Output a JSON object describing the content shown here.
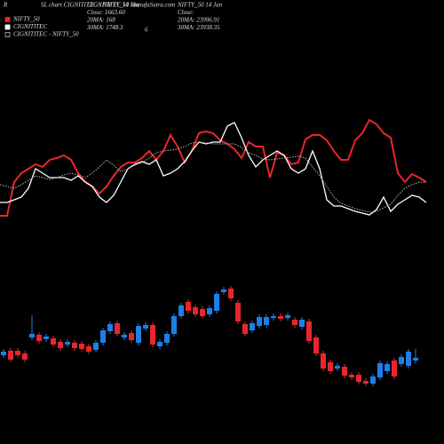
{
  "header": {
    "corner": "R",
    "title": "SL chart CIGNITITEC : NIFTY_50 MunafaSutra.com"
  },
  "info_left": [
    "CIGNITITEC 14 Jan",
    "Close: 1663.60",
    "20MA: 168",
    "30MA: 1748.3"
  ],
  "info_left_extra": "6",
  "info_right": [
    "NIFTY_50 14 Jan",
    "Close:",
    "20MA: 23996.91",
    "30MA: 23938.35"
  ],
  "chart_data": [
    {
      "type": "line",
      "ylim": [
        0,
        500
      ],
      "series": [
        {
          "name": "NIFTY_50",
          "color": "#e8262d",
          "values": [
            257,
            257,
            295,
            305,
            310,
            315,
            312,
            320,
            322,
            325,
            320,
            305,
            295,
            290,
            282,
            290,
            302,
            312,
            317,
            317,
            322,
            330,
            320,
            330,
            348,
            335,
            317,
            330,
            350,
            352,
            350,
            342,
            338,
            332,
            322,
            340,
            335,
            335,
            300,
            328,
            325,
            315,
            317,
            343,
            348,
            348,
            342,
            330,
            320,
            320,
            342,
            350,
            365,
            360,
            350,
            345,
            305,
            295,
            304,
            300,
            295
          ]
        },
        {
          "name": "CIGNITITEC",
          "color": "#ffffff",
          "values": [
            272,
            272,
            275,
            278,
            288,
            310,
            305,
            300,
            300,
            300,
            297,
            302,
            295,
            290,
            278,
            272,
            280,
            295,
            310,
            315,
            318,
            315,
            320,
            302,
            305,
            310,
            318,
            330,
            340,
            338,
            340,
            340,
            358,
            362,
            345,
            325,
            312,
            320,
            325,
            330,
            325,
            310,
            305,
            310,
            330,
            310,
            275,
            268,
            268,
            265,
            262,
            260,
            258,
            264,
            278,
            262,
            270,
            275,
            280,
            278,
            272
          ]
        },
        {
          "name": "CIGNITITEC - NIFTY_50",
          "color": "#bbbbbb",
          "dashed": true,
          "values": [
            292,
            290,
            288,
            292,
            297,
            302,
            300,
            298,
            300,
            303,
            305,
            303,
            300,
            305,
            312,
            320,
            314,
            307,
            310,
            314,
            317,
            322,
            328,
            330,
            331,
            332,
            335,
            339,
            340,
            339,
            338,
            338,
            338,
            338,
            334,
            328,
            325,
            321,
            320,
            321,
            322,
            323,
            324,
            322,
            312,
            302,
            290,
            278,
            271,
            268,
            265,
            263,
            261,
            262,
            266,
            270,
            280,
            288,
            292,
            295,
            295
          ]
        }
      ]
    },
    {
      "type": "candlestick",
      "ylim": [
        0,
        500
      ],
      "up_color": "#1e7fe8",
      "down_color": "#e8262d",
      "open": [
        100,
        105,
        105,
        102,
        120,
        123,
        118,
        119,
        115,
        112,
        114,
        113,
        110,
        106,
        114,
        127,
        136,
        120,
        125,
        114,
        130,
        134,
        110,
        114,
        124,
        144,
        160,
        154,
        152,
        146,
        150,
        171,
        175,
        159,
        135,
        128,
        133,
        134,
        142,
        144,
        142,
        140,
        132,
        138,
        120,
        102,
        92,
        85,
        87,
        78,
        78,
        71,
        68,
        75,
        82,
        94,
        90,
        88,
        94
      ],
      "high": [
        107,
        108,
        108,
        105,
        145,
        126,
        124,
        122,
        118,
        118,
        117,
        116,
        113,
        117,
        131,
        138,
        139,
        126,
        128,
        136,
        137,
        137,
        118,
        127,
        147,
        159,
        163,
        157,
        155,
        156,
        172,
        177,
        178,
        162,
        138,
        139,
        146,
        146,
        147,
        147,
        148,
        143,
        143,
        141,
        123,
        105,
        95,
        91,
        90,
        81,
        81,
        74,
        79,
        94,
        93,
        97,
        101,
        107,
        107
      ],
      "low": [
        97,
        92,
        97,
        92,
        117,
        113,
        115,
        109,
        105,
        109,
        105,
        104,
        101,
        103,
        111,
        124,
        121,
        117,
        114,
        111,
        127,
        109,
        107,
        111,
        121,
        141,
        147,
        143,
        141,
        143,
        147,
        168,
        161,
        135,
        121,
        125,
        130,
        131,
        139,
        138,
        139,
        131,
        129,
        113,
        99,
        82,
        79,
        82,
        74,
        72,
        67,
        65,
        65,
        72,
        79,
        73,
        87,
        85,
        91
      ],
      "close": [
        104,
        95,
        100,
        95,
        124,
        116,
        121,
        112,
        108,
        115,
        108,
        107,
        104,
        114,
        128,
        135,
        124,
        123,
        117,
        133,
        134,
        112,
        115,
        124,
        144,
        156,
        150,
        146,
        144,
        153,
        169,
        174,
        164,
        138,
        124,
        136,
        143,
        143,
        144,
        141,
        145,
        134,
        140,
        116,
        102,
        85,
        82,
        88,
        77,
        75,
        70,
        68,
        76,
        91,
        90,
        76,
        98,
        104,
        97
      ]
    }
  ]
}
